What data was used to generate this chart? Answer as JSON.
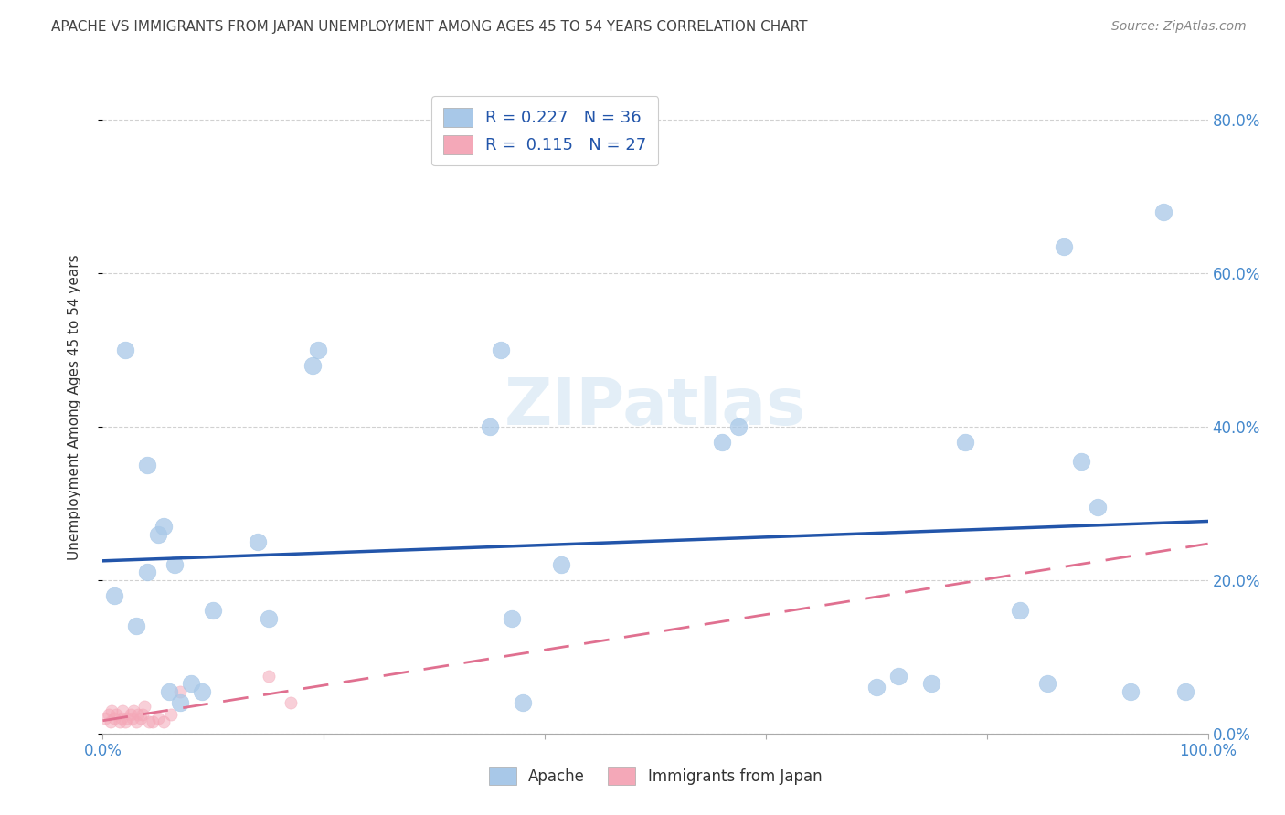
{
  "title": "APACHE VS IMMIGRANTS FROM JAPAN UNEMPLOYMENT AMONG AGES 45 TO 54 YEARS CORRELATION CHART",
  "source": "Source: ZipAtlas.com",
  "ylabel": "Unemployment Among Ages 45 to 54 years",
  "xlim": [
    0,
    1.0
  ],
  "ylim": [
    0,
    0.85
  ],
  "xticks": [
    0.0,
    0.2,
    0.4,
    0.6,
    0.8,
    1.0
  ],
  "xticklabels": [
    "0.0%",
    "",
    "",
    "",
    "",
    "100.0%"
  ],
  "yticks": [
    0.0,
    0.2,
    0.4,
    0.6,
    0.8
  ],
  "yticklabels_right": [
    "0.0%",
    "20.0%",
    "40.0%",
    "60.0%",
    "80.0%"
  ],
  "apache_color": "#a8c8e8",
  "japan_color": "#f4a8b8",
  "apache_line_color": "#2255aa",
  "japan_line_color": "#e07090",
  "watermark": "ZIPatlas",
  "apache_x": [
    0.02,
    0.01,
    0.03,
    0.04,
    0.04,
    0.05,
    0.055,
    0.06,
    0.065,
    0.07,
    0.08,
    0.09,
    0.1,
    0.14,
    0.15,
    0.19,
    0.195,
    0.35,
    0.36,
    0.37,
    0.38,
    0.415,
    0.56,
    0.575,
    0.7,
    0.72,
    0.75,
    0.78,
    0.83,
    0.855,
    0.87,
    0.885,
    0.9,
    0.93,
    0.96,
    0.98
  ],
  "apache_y": [
    0.5,
    0.18,
    0.14,
    0.21,
    0.35,
    0.26,
    0.27,
    0.055,
    0.22,
    0.04,
    0.065,
    0.055,
    0.16,
    0.25,
    0.15,
    0.48,
    0.5,
    0.4,
    0.5,
    0.15,
    0.04,
    0.22,
    0.38,
    0.4,
    0.06,
    0.075,
    0.065,
    0.38,
    0.16,
    0.065,
    0.635,
    0.355,
    0.295,
    0.055,
    0.68,
    0.055
  ],
  "japan_x": [
    0.002,
    0.005,
    0.007,
    0.008,
    0.01,
    0.012,
    0.015,
    0.017,
    0.018,
    0.02,
    0.022,
    0.025,
    0.027,
    0.028,
    0.03,
    0.032,
    0.034,
    0.036,
    0.038,
    0.042,
    0.045,
    0.05,
    0.055,
    0.062,
    0.07,
    0.15,
    0.17
  ],
  "japan_y": [
    0.02,
    0.025,
    0.015,
    0.03,
    0.02,
    0.025,
    0.015,
    0.02,
    0.03,
    0.015,
    0.02,
    0.025,
    0.02,
    0.03,
    0.015,
    0.025,
    0.02,
    0.025,
    0.035,
    0.015,
    0.015,
    0.02,
    0.015,
    0.025,
    0.055,
    0.075,
    0.04
  ],
  "background_color": "#ffffff",
  "grid_color": "#cccccc",
  "title_color": "#444444",
  "tick_label_color": "#4488cc"
}
